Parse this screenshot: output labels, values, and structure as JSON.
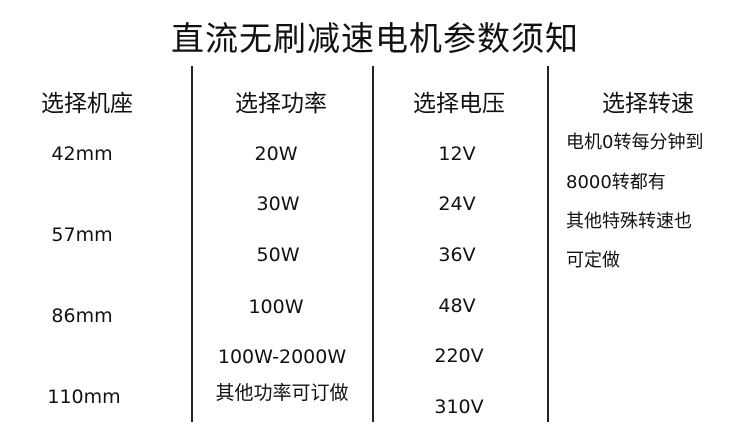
{
  "title": "直流无刷减速电机参数须知",
  "columns": [
    {
      "header": "选择机座",
      "values": [
        "42mm",
        "57mm",
        "86mm",
        "110mm"
      ]
    },
    {
      "header": "选择功率",
      "values": [
        "20W",
        "30W",
        "50W",
        "100W",
        "100W-2000W",
        "其他功率可订做"
      ]
    },
    {
      "header": "选择电压",
      "values": [
        "12V",
        "24V",
        "36V",
        "48V",
        "220V",
        "310V"
      ]
    },
    {
      "header": "选择转速",
      "lines": [
        "电机0转每分钟到",
        "8000转都有",
        "其他特殊转速也",
        "可定做"
      ]
    }
  ]
}
